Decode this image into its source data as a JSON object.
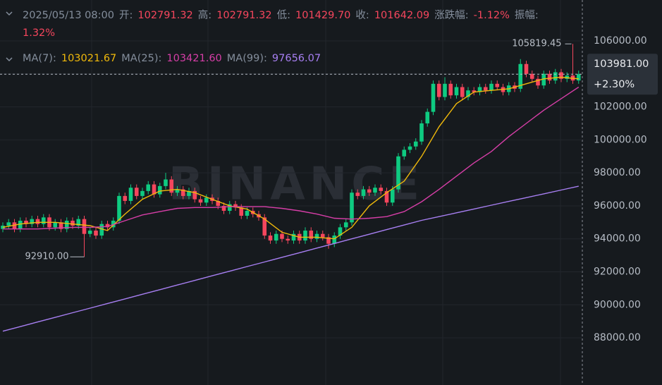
{
  "chart_data": {
    "type": "candlestick",
    "watermark": "BINANCE",
    "time": "2025/05/13 08:00",
    "info": [
      {
        "label": "开:",
        "value": "102791.32"
      },
      {
        "label": "高:",
        "value": "102791.32"
      },
      {
        "label": "低:",
        "value": "101429.70"
      },
      {
        "label": "收:",
        "value": "101642.09"
      },
      {
        "label": "涨跌幅:",
        "value": "-1.12%"
      },
      {
        "label": "振幅:",
        "value": "1.32%"
      }
    ],
    "ylim": [
      85140,
      108480
    ],
    "yticks": [
      {
        "value": 88000,
        "label": "88000.00"
      },
      {
        "value": 90000,
        "label": "90000.00"
      },
      {
        "value": 92000,
        "label": "92000.00"
      },
      {
        "value": 94000,
        "label": "94000.00"
      },
      {
        "value": 96000,
        "label": "96000.00"
      },
      {
        "value": 98000,
        "label": "98000.00"
      },
      {
        "value": 100000,
        "label": "100000.00"
      },
      {
        "value": 102000,
        "label": "102000.00"
      },
      {
        "value": 104000,
        "label": "104000.00"
      },
      {
        "value": 106000,
        "label": "106000.00"
      }
    ],
    "grid": true,
    "up_color": "#0ecb81",
    "down_color": "#f6465d",
    "open": [
      94600,
      94800,
      95000,
      94600,
      95100,
      94900,
      95200,
      94900,
      95300,
      94700,
      95000,
      94600,
      95100,
      94800,
      95200,
      94300,
      94500,
      94200,
      94900,
      94700,
      95100,
      96600,
      96300,
      97100,
      96600,
      96900,
      97300,
      96700,
      97200,
      97600,
      96800,
      97000,
      96600,
      96900,
      96400,
      96200,
      96500,
      96300,
      96000,
      95700,
      96100,
      95900,
      95400,
      95700,
      95500,
      95300,
      94200,
      93900,
      94300,
      94000,
      93900,
      94300,
      93900,
      94500,
      94000,
      94300,
      94100,
      93700,
      94200,
      94700,
      95000,
      96800,
      96600,
      97000,
      96800,
      97100,
      96900,
      96200,
      97000,
      99000,
      99400,
      99600,
      99900,
      101000,
      101700,
      103400,
      102600,
      103400,
      102700,
      103200,
      102600,
      103000,
      102900,
      103200,
      103000,
      103400,
      103200,
      102900,
      103300,
      103100,
      104600,
      104000,
      103700,
      103300,
      104000,
      103600,
      104100,
      103700,
      103900,
      103600
    ],
    "high": [
      95000,
      95200,
      95200,
      95300,
      95300,
      95400,
      95400,
      95500,
      95500,
      95200,
      95200,
      95300,
      95300,
      95400,
      95400,
      94700,
      94700,
      95100,
      95100,
      95300,
      96800,
      96800,
      97300,
      97300,
      97100,
      97500,
      97500,
      97400,
      98000,
      97800,
      97200,
      97200,
      97100,
      97100,
      96600,
      96700,
      96700,
      96500,
      96200,
      96300,
      96300,
      96100,
      95900,
      95900,
      95700,
      95500,
      94400,
      94500,
      94500,
      94200,
      94500,
      94500,
      94700,
      94700,
      94500,
      94500,
      94300,
      94400,
      94900,
      95200,
      97000,
      97000,
      97200,
      97200,
      97300,
      97300,
      97100,
      97200,
      99200,
      99600,
      99800,
      100100,
      101200,
      101900,
      103600,
      103600,
      103800,
      103600,
      103400,
      103400,
      103200,
      103200,
      103400,
      103400,
      103600,
      103600,
      103400,
      103500,
      103500,
      104900,
      104800,
      104200,
      103900,
      104200,
      104200,
      104300,
      104300,
      104100,
      105819.45,
      104200
    ],
    "low": [
      94400,
      94600,
      94400,
      94400,
      94700,
      94700,
      94700,
      94700,
      94500,
      94500,
      94400,
      94400,
      94600,
      94600,
      92910,
      94100,
      94000,
      94000,
      94500,
      94500,
      94900,
      96100,
      96100,
      96400,
      96400,
      96700,
      96500,
      96500,
      97000,
      96600,
      96600,
      96400,
      96400,
      96200,
      96000,
      96000,
      96100,
      95800,
      95500,
      95500,
      95700,
      95200,
      95200,
      95300,
      95100,
      94000,
      93700,
      93700,
      93800,
      93700,
      93700,
      93700,
      93700,
      93800,
      93800,
      93900,
      93400,
      93500,
      94000,
      94500,
      94800,
      96400,
      96400,
      96600,
      96600,
      96700,
      96000,
      96000,
      96800,
      98800,
      99200,
      99400,
      99700,
      100800,
      101500,
      102400,
      102400,
      102500,
      102500,
      102400,
      102400,
      102700,
      102700,
      102800,
      102800,
      103000,
      102700,
      102700,
      102900,
      102900,
      103800,
      103500,
      103100,
      103100,
      103400,
      103400,
      103500,
      103500,
      103400,
      103400
    ],
    "close": [
      94800,
      95000,
      94600,
      95100,
      94900,
      95200,
      94900,
      95300,
      94700,
      95000,
      94600,
      95100,
      94800,
      95200,
      94300,
      94500,
      94200,
      94900,
      94700,
      95100,
      96600,
      96300,
      97100,
      96600,
      96900,
      97300,
      96700,
      97200,
      97600,
      96800,
      97000,
      96600,
      96900,
      96400,
      96200,
      96500,
      96300,
      96000,
      95700,
      96100,
      95900,
      95400,
      95700,
      95500,
      95300,
      94200,
      93900,
      94300,
      94000,
      93900,
      94300,
      93900,
      94500,
      94000,
      94300,
      94100,
      93700,
      94200,
      94700,
      95000,
      96800,
      96600,
      97000,
      96800,
      97100,
      96900,
      96200,
      97000,
      99000,
      99400,
      99600,
      99900,
      101000,
      101700,
      103400,
      102600,
      103400,
      102700,
      103200,
      102600,
      103000,
      102900,
      103200,
      103000,
      103400,
      103200,
      102900,
      103300,
      103100,
      104600,
      104000,
      103700,
      103300,
      104000,
      103600,
      104100,
      103700,
      103900,
      103600,
      103981
    ],
    "series": [
      {
        "name": "MA(7):",
        "legend_value": "103021.67",
        "color": "#f0b90b",
        "values": [
          94700,
          94900,
          95000,
          95000,
          94900,
          94800,
          94500,
          95500,
          96400,
          96900,
          97000,
          96800,
          96400,
          96000,
          95800,
          95200,
          94400,
          94100,
          94100,
          94000,
          94700,
          96000,
          96800,
          97500,
          99000,
          100800,
          102200,
          102900,
          103000,
          103100,
          103400,
          103700,
          103800,
          103700
        ]
      },
      {
        "name": "MA(25):",
        "legend_value": "103421.60",
        "color": "#d63ea7",
        "values": [
          94600,
          94600,
          94600,
          94650,
          94700,
          94700,
          94750,
          95100,
          95450,
          95650,
          95850,
          95900,
          95900,
          95950,
          95950,
          95950,
          95850,
          95700,
          95500,
          95250,
          95200,
          95250,
          95350,
          95650,
          96250,
          97000,
          97800,
          98600,
          99300,
          100200,
          101000,
          101800,
          102500,
          103200
        ]
      },
      {
        "name": "MA(99):",
        "legend_value": "97656.07",
        "color": "#a77ff2",
        "values": [
          88400,
          88680,
          88960,
          89240,
          89520,
          89800,
          90080,
          90360,
          90640,
          90920,
          91200,
          91480,
          91760,
          92040,
          92320,
          92600,
          92880,
          93160,
          93440,
          93720,
          94000,
          94280,
          94560,
          94840,
          95120,
          95350,
          95580,
          95810,
          96040,
          96270,
          96500,
          96730,
          96960,
          97190
        ]
      }
    ],
    "annotations": [
      {
        "value": 105819.45,
        "label": "105819.45"
      },
      {
        "value": 92910,
        "label": "92910.00"
      }
    ],
    "current_price": {
      "value": 103981,
      "label": "103981.00",
      "change": "+2.30%"
    }
  }
}
